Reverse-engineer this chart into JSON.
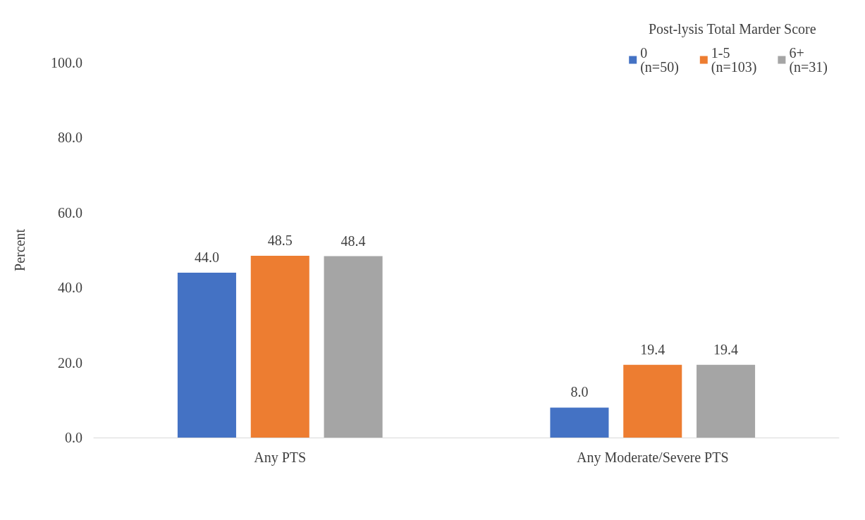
{
  "chart_data": {
    "type": "bar",
    "ylabel": "Percent",
    "legend_title": "Post-lysis Total Marder Score",
    "categories": [
      "Any PTS",
      "Any Moderate/Severe PTS"
    ],
    "series": [
      {
        "name": "0\n(n=50)",
        "color": "#4472c4",
        "values": [
          44.0,
          8.0
        ],
        "value_labels": [
          "44.0",
          "8.0"
        ]
      },
      {
        "name": "1-5\n(n=103)",
        "color": "#ed7d31",
        "values": [
          48.5,
          19.4
        ],
        "value_labels": [
          "48.5",
          "19.4"
        ]
      },
      {
        "name": "6+\n(n=31)",
        "color": "#a5a5a5",
        "values": [
          48.4,
          19.4
        ],
        "value_labels": [
          "48.4",
          "19.4"
        ]
      }
    ],
    "ylim": [
      0,
      100
    ],
    "yticks": [
      {
        "value": 0,
        "label": "0.0"
      },
      {
        "value": 20,
        "label": "20.0"
      },
      {
        "value": 40,
        "label": "40.0"
      },
      {
        "value": 60,
        "label": "60.0"
      },
      {
        "value": 80,
        "label": "80.0"
      },
      {
        "value": 100,
        "label": "100.0"
      }
    ],
    "grid": false,
    "legend": "top right"
  }
}
